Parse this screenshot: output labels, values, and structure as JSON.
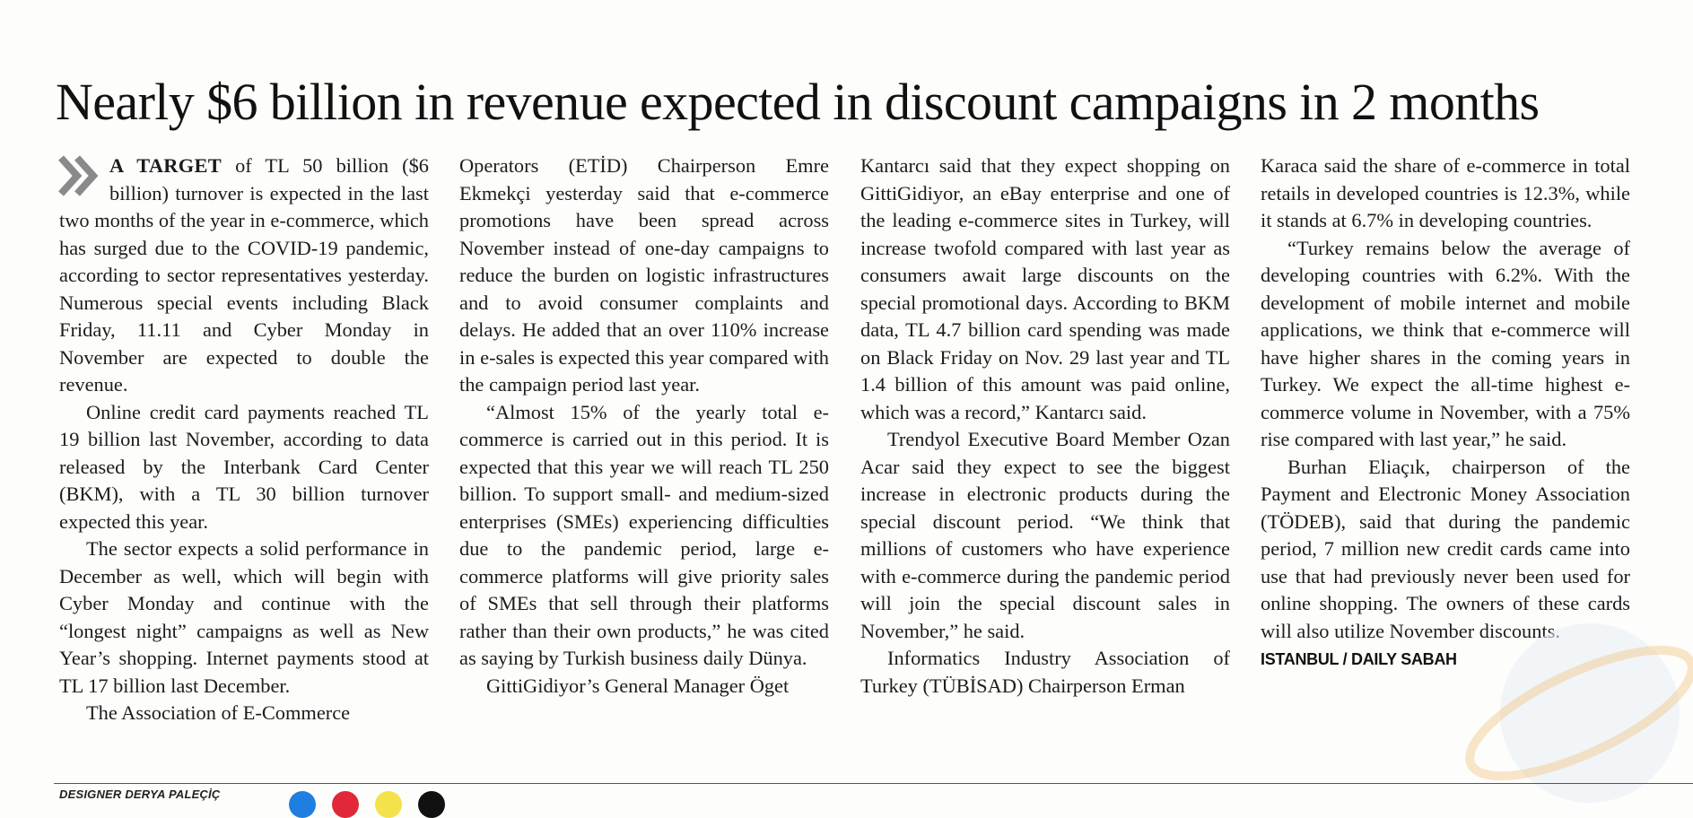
{
  "headline": "Nearly $6 billion in revenue expected in discount campaigns in 2 months",
  "article": {
    "col1": {
      "lead": "A TARGET",
      "p1": " of TL 50 billion ($6 billion) turnover is expected in the last two months of the year in e-commerce, which has surged due to the COVID-19 pandemic, according to sector representatives yesterday. Numerous special events including Black Friday, 11.11 and Cyber Monday in November are expected to double the revenue.",
      "p2": "Online credit card payments reached TL 19 billion last November, according to data released by the Interbank Card Center (BKM), with a TL 30 billion turnover expected this year.",
      "p3": "The sector expects a solid performance in December as well, which will begin with Cyber Monday and continue with the “longest night” campaigns as well as New Year’s shopping. Internet payments stood at TL 17 billion last December.",
      "p4": "The Association of E-Commerce"
    },
    "col2": {
      "p1": "Operators (ETİD) Chairperson Emre Ekmekçi yesterday said that e-commerce promotions have been spread across November instead of one-day campaigns to reduce the burden on logistic infrastructures and to avoid consumer complaints and delays. He added that an over 110% increase in e-sales is expected this year compared with the campaign period last year.",
      "p2": "“Almost 15% of the yearly total e-commerce is carried out in this period. It is expected that this year we will reach TL 250 billion. To support small- and medium-sized enterprises (SMEs) experiencing difficulties due to the pandemic period, large e-commerce platforms will give priority sales of SMEs that sell through their platforms rather than their own products,” he was cited as saying by Turkish business daily Dünya.",
      "p3": "GittiGidiyor’s General Manager Öget"
    },
    "col3": {
      "p1": "Kantarcı said that they expect shopping on GittiGidiyor, an eBay enterprise and one of the leading e-commerce sites in Turkey, will increase twofold compared with last year as consumers await large discounts on the special promotional days. According to BKM data, TL 4.7 billion card spending was made on Black Friday on Nov. 29 last year and TL 1.4 billion of this amount was paid online, which was a record,” Kantarcı said.",
      "p2": "Trendyol Executive Board Member Ozan Acar said they expect to see the biggest increase in electronic products during the special discount period. “We think that millions of customers who have experience with e-commerce during the pandemic period will join the special discount sales in November,” he said.",
      "p3": "Informatics Industry Association of Turkey (TÜBİSAD) Chairperson Erman"
    },
    "col4": {
      "p1": "Karaca said the share of e-commerce in total retails in developed countries is 12.3%, while it stands at 6.7% in developing countries.",
      "p2": "“Turkey remains below the average of developing countries with 6.2%. With the development of mobile internet and mobile applications, we think that e-commerce will have higher shares in the coming years in Turkey. We expect the all-time highest e-commerce volume in November, with a 75% rise compared with last year,” he said.",
      "p3": "Burhan Eliaçık, chairperson of the Payment and Electronic Money Association (TÖDEB), said that during the pandemic period, 7 million new credit cards came into use that had previously never been used for online shopping. The owners of these cards will also utilize November discounts.",
      "signature": "ISTANBUL / DAILY SABAH"
    }
  },
  "footer": {
    "designer": "DESIGNER DERYA PALEÇİÇ"
  },
  "colors": {
    "registration_dots": [
      "#1f7fe0",
      "#e0283a",
      "#f3e24a",
      "#111111"
    ],
    "chevron": "#8a8a8a"
  },
  "icons": {
    "lead_marker": "double-chevron-icon"
  }
}
